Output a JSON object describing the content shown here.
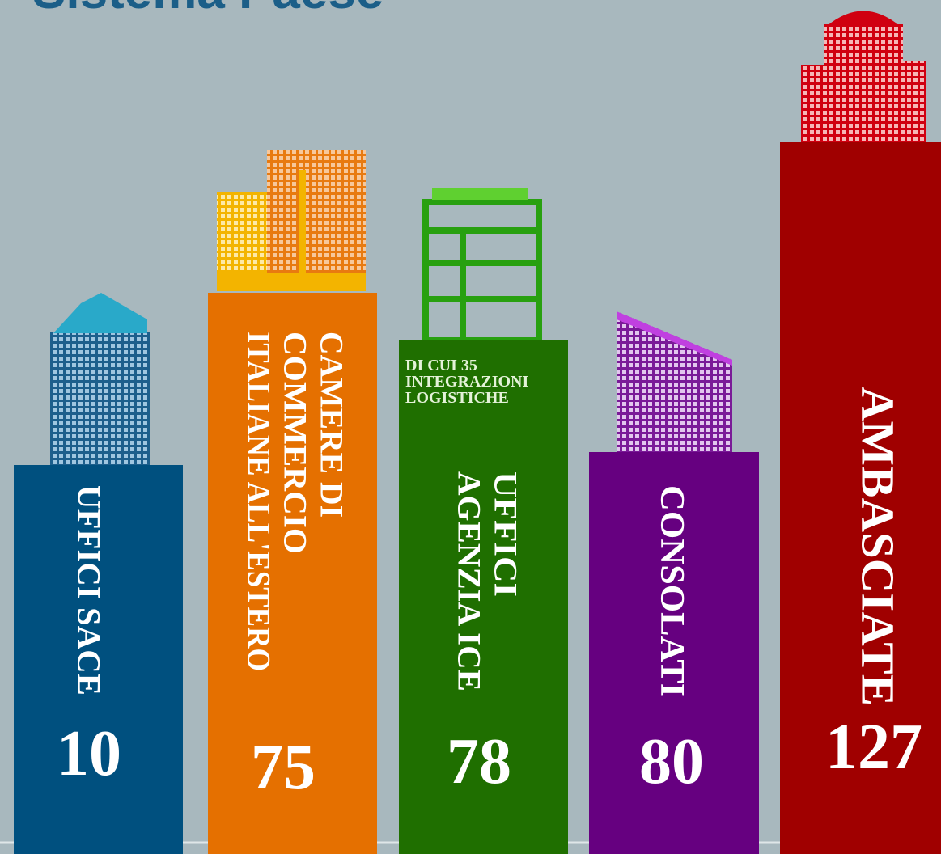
{
  "title": "Sistema Paese",
  "buildings": [
    {
      "lines": [
        "UFFICI SACE"
      ],
      "value": 10
    },
    {
      "lines": [
        "CAMERE DI",
        "COMMERCIO",
        "ITALIANE ALL'ESTERO"
      ],
      "value": 75
    },
    {
      "lines": [
        "UFFICI",
        "AGENZIA ICE"
      ],
      "value": 78,
      "note": [
        "DI CUI 35",
        "INTEGRAZIONI",
        "LOGISTICHE"
      ]
    },
    {
      "lines": [
        "CONSOLATI"
      ],
      "value": 80
    },
    {
      "lines": [
        "AMBASCIATE"
      ],
      "value": 127
    }
  ]
}
